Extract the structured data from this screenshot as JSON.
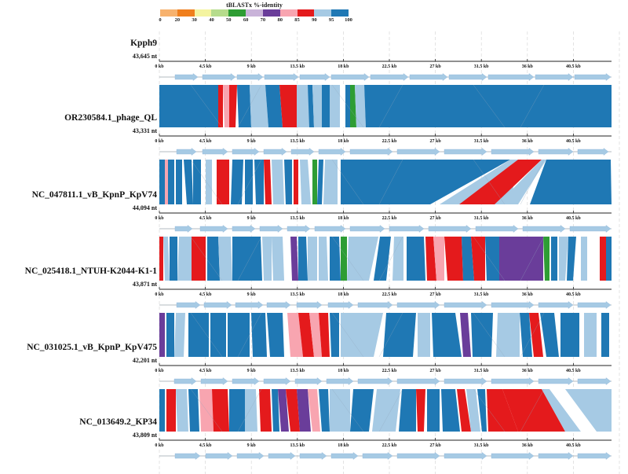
{
  "legend": {
    "title": "tBLASTx %-identity",
    "ticks": [
      "0",
      "20",
      "30",
      "40",
      "50",
      "60",
      "70",
      "80",
      "85",
      "90",
      "95",
      "100"
    ],
    "colors": [
      "#f7b26e",
      "#f07f1d",
      "#f4f4a0",
      "#b6dc8c",
      "#2e9d34",
      "#c9b3d9",
      "#6a3d9a",
      "#f8a5b0",
      "#e41a1c",
      "#a6cae4",
      "#1f78b4"
    ]
  },
  "axis": {
    "ticks": [
      "0 kb",
      "4.5 kb",
      "9 kb",
      "13.5 kb",
      "18 kb",
      "22.5 kb",
      "27 kb",
      "31.5 kb",
      "36 kb",
      "40.5 kb"
    ]
  },
  "genomes": [
    {
      "name": "Kpph9",
      "length": "43,645 nt"
    },
    {
      "name": "OR230584.1_phage_QL",
      "length": "43,331 nt"
    },
    {
      "name": "NC_047811.1_vB_KpnP_KpV74",
      "length": "44,094 nt"
    },
    {
      "name": "NC_025418.1_NTUH-K2044-K1-1",
      "length": "43,871 nt"
    },
    {
      "name": "NC_031025.1_vB_KpnP_KpV475",
      "length": "42,201 nt"
    },
    {
      "name": "NC_013649.2_KP34",
      "length": "43,809 nt"
    }
  ]
}
